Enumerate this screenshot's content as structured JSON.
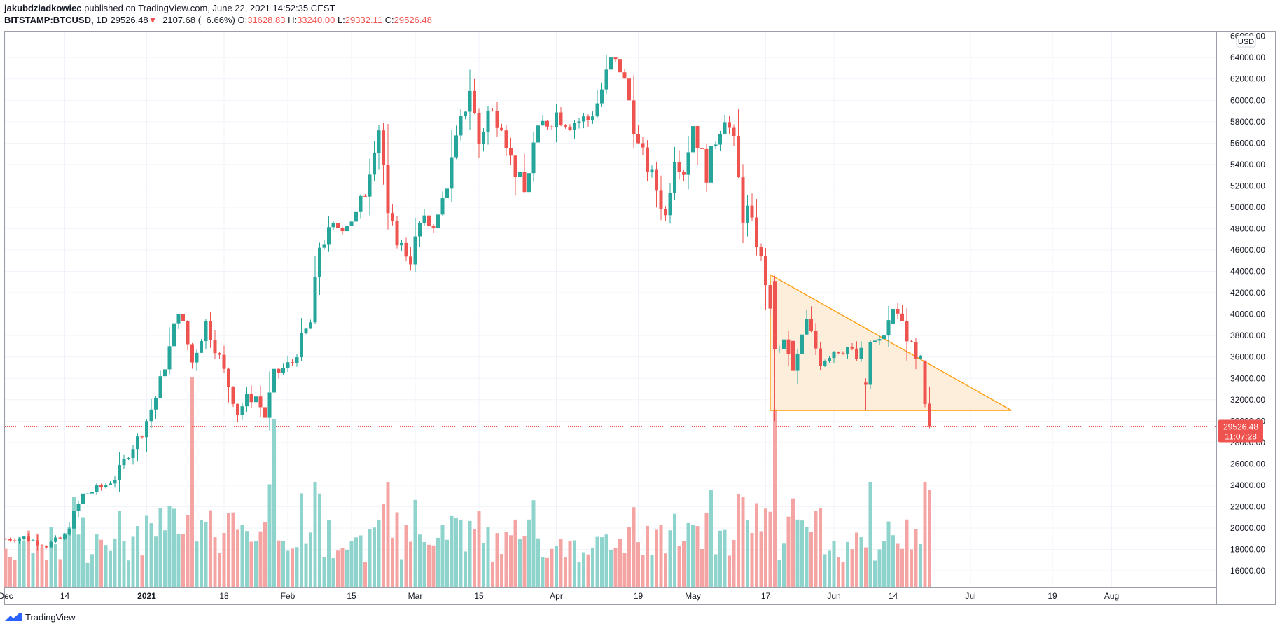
{
  "header": {
    "author": "jakubdziadkowiec",
    "published_text": "published on TradingView.com, June 22, 2021 14:52:35 CEST",
    "symbol": "BITSTAMP:BTCUSD, 1D",
    "last": "29526.48",
    "change_arrow": "▼",
    "change": "−2107.68 (−6.66%)",
    "o_label": "O:",
    "o_value": "31628.83",
    "h_label": "H:",
    "h_value": "33240.00",
    "l_label": "L:",
    "l_value": "29332.11",
    "c_label": "C:",
    "c_value": "29526.48"
  },
  "price_axis": {
    "currency": "USD",
    "last_price": "29526.48",
    "countdown": "11:07:28"
  },
  "footer": {
    "brand": "TradingView",
    "logo_icon": "tradingview-logo-icon"
  },
  "colors": {
    "up": "#26a69a",
    "down": "#ef5350",
    "up_volume": "#8fd4cc",
    "down_volume": "#f4a5a3",
    "pattern": "#ff9800",
    "pattern_fill": "#fdebd6"
  },
  "chart_data": {
    "type": "candlestick",
    "symbol": "BITSTAMP:BTCUSD",
    "timeframe": "1D",
    "x_range": [
      "2020-12-01",
      "2021-08-24"
    ],
    "y_range": [
      14500,
      66500
    ],
    "y_ticks": [
      16000,
      18000,
      20000,
      22000,
      24000,
      26000,
      28000,
      30000,
      32000,
      34000,
      36000,
      38000,
      40000,
      42000,
      44000,
      46000,
      48000,
      50000,
      52000,
      54000,
      56000,
      58000,
      60000,
      62000,
      64000,
      66000
    ],
    "x_ticks": [
      {
        "date": "2020-12-01",
        "label": "Dec"
      },
      {
        "date": "2020-12-14",
        "label": "14"
      },
      {
        "date": "2021-01-01",
        "label": "2021"
      },
      {
        "date": "2021-01-18",
        "label": "18"
      },
      {
        "date": "2021-02-01",
        "label": "Feb"
      },
      {
        "date": "2021-02-15",
        "label": "15"
      },
      {
        "date": "2021-03-01",
        "label": "Mar"
      },
      {
        "date": "2021-03-15",
        "label": "15"
      },
      {
        "date": "2021-04-01",
        "label": "Apr"
      },
      {
        "date": "2021-04-19",
        "label": "19"
      },
      {
        "date": "2021-05-01",
        "label": "May"
      },
      {
        "date": "2021-05-17",
        "label": "17"
      },
      {
        "date": "2021-06-01",
        "label": "Jun"
      },
      {
        "date": "2021-06-14",
        "label": "14"
      },
      {
        "date": "2021-07-01",
        "label": "Jul"
      },
      {
        "date": "2021-07-19",
        "label": "19"
      },
      {
        "date": "2021-08-01",
        "label": "Aug"
      }
    ],
    "close_path": [
      [
        "2020-12-01",
        19000
      ],
      [
        "2020-12-05",
        19100
      ],
      [
        "2020-12-10",
        18400
      ],
      [
        "2020-12-14",
        19200
      ],
      [
        "2020-12-16",
        21300
      ],
      [
        "2020-12-18",
        23100
      ],
      [
        "2020-12-22",
        23800
      ],
      [
        "2020-12-25",
        24700
      ],
      [
        "2020-12-28",
        27000
      ],
      [
        "2020-12-31",
        29000
      ],
      [
        "2021-01-03",
        32200
      ],
      [
        "2021-01-06",
        36800
      ],
      [
        "2021-01-08",
        40600
      ],
      [
        "2021-01-11",
        35500
      ],
      [
        "2021-01-14",
        39200
      ],
      [
        "2021-01-17",
        35900
      ],
      [
        "2021-01-21",
        30800
      ],
      [
        "2021-01-23",
        32100
      ],
      [
        "2021-01-25",
        32300
      ],
      [
        "2021-01-27",
        30400
      ],
      [
        "2021-01-29",
        34300
      ],
      [
        "2021-02-02",
        35500
      ],
      [
        "2021-02-04",
        37600
      ],
      [
        "2021-02-06",
        39200
      ],
      [
        "2021-02-08",
        46400
      ],
      [
        "2021-02-11",
        48000
      ],
      [
        "2021-02-14",
        48700
      ],
      [
        "2021-02-16",
        49200
      ],
      [
        "2021-02-18",
        51500
      ],
      [
        "2021-02-20",
        56000
      ],
      [
        "2021-02-21",
        57500
      ],
      [
        "2021-02-22",
        54000
      ],
      [
        "2021-02-23",
        48800
      ],
      [
        "2021-02-26",
        46300
      ],
      [
        "2021-02-28",
        45200
      ],
      [
        "2021-03-02",
        48400
      ],
      [
        "2021-03-04",
        48500
      ],
      [
        "2021-03-06",
        48900
      ],
      [
        "2021-03-08",
        52400
      ],
      [
        "2021-03-10",
        56000
      ],
      [
        "2021-03-13",
        61200
      ],
      [
        "2021-03-15",
        56000
      ],
      [
        "2021-03-17",
        58900
      ],
      [
        "2021-03-20",
        58200
      ],
      [
        "2021-03-22",
        54500
      ],
      [
        "2021-03-25",
        51300
      ],
      [
        "2021-03-27",
        55800
      ],
      [
        "2021-03-29",
        57700
      ],
      [
        "2021-04-01",
        58800
      ],
      [
        "2021-04-04",
        58000
      ],
      [
        "2021-04-06",
        58100
      ],
      [
        "2021-04-08",
        58200
      ],
      [
        "2021-04-10",
        59800
      ],
      [
        "2021-04-13",
        63500
      ],
      [
        "2021-04-15",
        63100
      ],
      [
        "2021-04-17",
        60000
      ],
      [
        "2021-04-19",
        55600
      ],
      [
        "2021-04-21",
        53800
      ],
      [
        "2021-04-23",
        51700
      ],
      [
        "2021-04-25",
        49100
      ],
      [
        "2021-04-27",
        55000
      ],
      [
        "2021-04-29",
        53500
      ],
      [
        "2021-05-01",
        57800
      ],
      [
        "2021-05-04",
        53200
      ],
      [
        "2021-05-06",
        56400
      ],
      [
        "2021-05-08",
        58800
      ],
      [
        "2021-05-10",
        55800
      ],
      [
        "2021-05-12",
        49200
      ],
      [
        "2021-05-13",
        49700
      ],
      [
        "2021-05-15",
        46800
      ],
      [
        "2021-05-17",
        43100
      ],
      [
        "2021-05-19",
        36700
      ],
      [
        "2021-05-21",
        37300
      ],
      [
        "2021-05-23",
        34700
      ],
      [
        "2021-05-26",
        39300
      ],
      [
        "2021-05-29",
        35600
      ],
      [
        "2021-06-01",
        36700
      ],
      [
        "2021-06-04",
        36900
      ],
      [
        "2021-06-06",
        35800
      ],
      [
        "2021-06-09",
        37400
      ],
      [
        "2021-06-11",
        37300
      ],
      [
        "2021-06-13",
        39100
      ],
      [
        "2021-06-15",
        40200
      ],
      [
        "2021-06-17",
        38000
      ],
      [
        "2021-06-19",
        35500
      ],
      [
        "2021-06-20",
        35600
      ],
      [
        "2021-06-21",
        31600
      ],
      [
        "2021-06-22",
        29526.48
      ]
    ],
    "annotated_days": [
      {
        "date": "2021-05-19",
        "open": 43100,
        "high": 43600,
        "low": 30000,
        "close": 36700
      },
      {
        "date": "2021-05-23",
        "open": 37500,
        "high": 38300,
        "low": 31100,
        "close": 34700
      },
      {
        "date": "2021-06-08",
        "open": 33600,
        "high": 34000,
        "low": 31000,
        "close": 33400
      },
      {
        "date": "2021-06-14",
        "open": 39100,
        "high": 41000,
        "low": 38700,
        "close": 40500
      },
      {
        "date": "2021-06-21",
        "open": 35600,
        "high": 35700,
        "low": 31300,
        "close": 31600
      },
      {
        "date": "2021-06-22",
        "open": 31628.83,
        "high": 33240.0,
        "low": 29332.11,
        "close": 29526.48
      }
    ],
    "last_price": 29526.48,
    "volume_peaks": [
      {
        "date": "2021-01-11",
        "relative": 1.0
      },
      {
        "date": "2021-01-29",
        "relative": 0.8
      },
      {
        "date": "2021-05-19",
        "relative": 0.85
      }
    ],
    "pattern": {
      "type": "descending triangle",
      "upper_line": [
        [
          "2021-05-18",
          43700
        ],
        [
          "2021-07-10",
          31000
        ]
      ],
      "lower_line": [
        [
          "2021-05-18",
          31000
        ],
        [
          "2021-07-10",
          31000
        ]
      ]
    },
    "grid": true
  }
}
